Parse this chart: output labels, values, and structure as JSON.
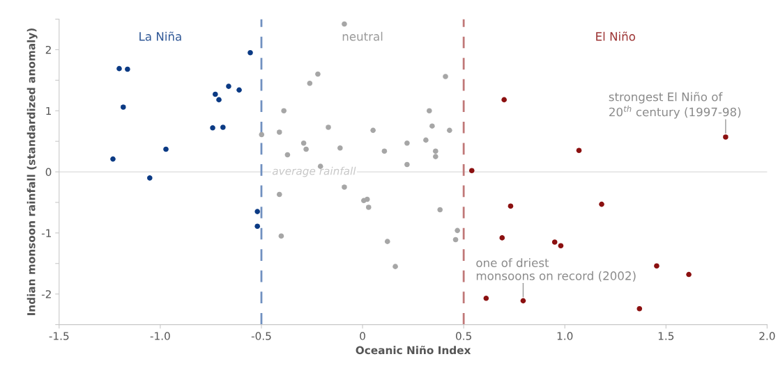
{
  "chart_data": {
    "type": "scatter",
    "xlabel": "Oceanic Niño Index",
    "ylabel": "Indian monsoon rainfall (standardized anomaly)",
    "xlim": [
      -1.5,
      2.0
    ],
    "ylim": [
      -2.5,
      2.5
    ],
    "xticks": [
      -1.5,
      {
        "value": -1.0,
        "label": "-1.0"
      },
      -0.5,
      0,
      0.5,
      {
        "value": 1.0,
        "label": "1.0"
      },
      1.5,
      {
        "value": 2.0,
        "label": "2.0"
      }
    ],
    "yticks": [
      {
        "value": -2.5,
        "label": null
      },
      -2,
      {
        "value": -1.5,
        "label": null
      },
      -1,
      {
        "value": -0.5,
        "label": null
      },
      0,
      {
        "value": 0.5,
        "label": null
      },
      1,
      {
        "value": 1.5,
        "label": null
      },
      2,
      {
        "value": 2.5,
        "label": null
      }
    ],
    "grid": false,
    "marker": "circle",
    "series": [
      {
        "name": "La Niña",
        "color": "#0b3a84",
        "x": [
          -1.234,
          -1.203,
          -1.162,
          -1.183,
          -0.972,
          -1.052,
          -0.555,
          -0.728,
          -0.71,
          -0.662,
          -0.61,
          -0.741,
          -0.69,
          -0.52,
          -0.52
        ],
        "values": [
          0.21,
          1.69,
          1.68,
          1.06,
          0.37,
          -0.1,
          1.95,
          1.27,
          1.18,
          1.4,
          1.34,
          0.72,
          0.73,
          -0.65,
          -0.89
        ]
      },
      {
        "name": "neutral",
        "color": "#a6a6a6",
        "x": [
          -0.09,
          -0.221,
          -0.261,
          -0.389,
          -0.411,
          -0.499,
          -0.371,
          -0.291,
          -0.279,
          -0.169,
          -0.111,
          -0.208,
          0.052,
          0.108,
          0.22,
          0.22,
          0.313,
          0.33,
          0.344,
          0.361,
          0.361,
          0.41,
          0.43,
          -0.411,
          -0.402,
          -0.09,
          0.006,
          0.023,
          0.03,
          0.123,
          0.162,
          0.383,
          0.469,
          0.46
        ],
        "values": [
          2.42,
          1.6,
          1.45,
          1.0,
          0.65,
          0.61,
          0.28,
          0.47,
          0.37,
          0.73,
          0.39,
          0.09,
          0.68,
          0.34,
          0.47,
          0.12,
          0.52,
          1.0,
          0.75,
          0.34,
          0.25,
          1.56,
          0.68,
          -0.37,
          -1.05,
          -0.25,
          -0.47,
          -0.45,
          -0.58,
          -1.14,
          -1.55,
          -0.62,
          -0.96,
          -1.11
        ]
      },
      {
        "name": "El Niño",
        "color": "#8b1010",
        "x": [
          0.7,
          0.54,
          1.07,
          1.795,
          0.732,
          1.182,
          0.69,
          0.95,
          0.98,
          1.454,
          1.613,
          0.611,
          0.794,
          1.369
        ],
        "values": [
          1.18,
          0.02,
          0.35,
          0.57,
          -0.56,
          -0.53,
          -1.08,
          -1.15,
          -1.21,
          -1.54,
          -1.68,
          -2.07,
          -2.11,
          -2.24
        ]
      }
    ],
    "ref_lines": [
      {
        "axis": "x",
        "value": -0.5,
        "color": "#7090c0",
        "line_style": "dashed"
      },
      {
        "axis": "x",
        "value": 0.5,
        "color": "#c07878",
        "line_style": "dashed"
      },
      {
        "axis": "y",
        "value": 0,
        "label": "average rainfall",
        "color": "#e6e6e6",
        "line_style": "solid"
      }
    ],
    "annotations": [
      {
        "text": "strongest El Niño of\n20$^{th}$ century (1997-98)",
        "x": 1.795,
        "y": 0.57
      },
      {
        "text": "one of driest\nmonsoons on record (2002)",
        "x": 0.794,
        "y": -2.11
      }
    ]
  }
}
